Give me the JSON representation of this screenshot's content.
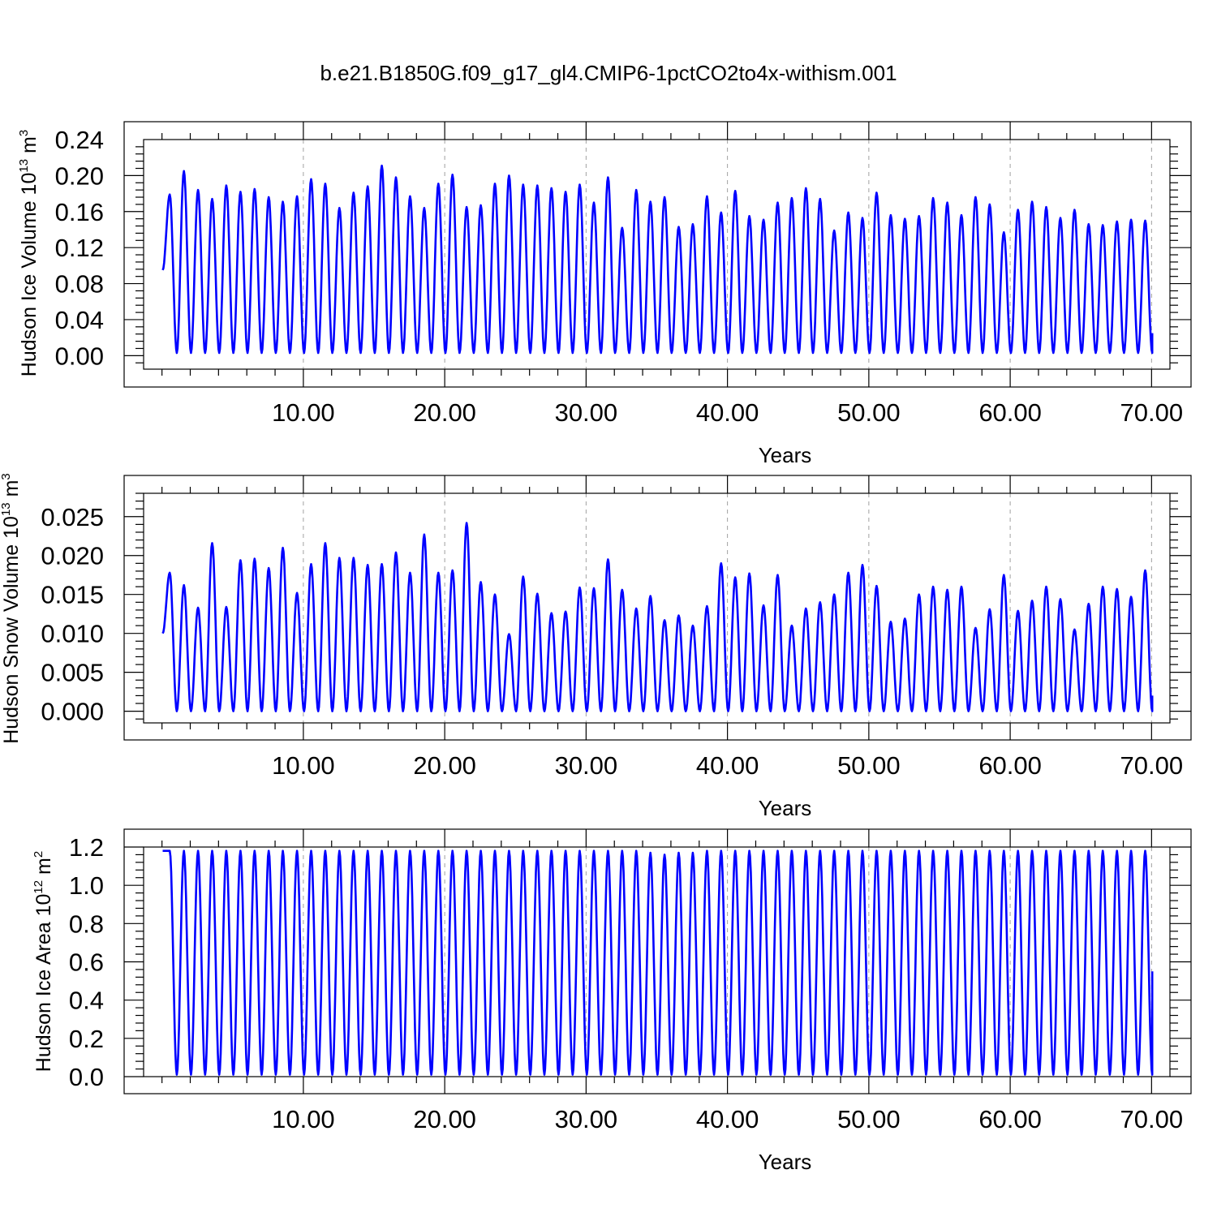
{
  "title": "b.e21.B1850G.f09_g17_gl4.CMIP6-1pctCO2to4x-withism.001",
  "line_color": "#0000ff",
  "grid_color": "#a0a0a0",
  "chart_data": [
    {
      "type": "line",
      "name": "ice_volume",
      "xlabel": "Years",
      "ylabel": {
        "main": "Hudson Ice Volume 10",
        "sup": "13",
        "unit": " m",
        "unit_sup": "3"
      },
      "xlim": [
        -1.3,
        71.3
      ],
      "ylim": [
        -0.015,
        0.24
      ],
      "xticks": [
        10,
        20,
        30,
        40,
        50,
        60,
        70
      ],
      "xtick_labels": [
        "10.00",
        "20.00",
        "30.00",
        "40.00",
        "50.00",
        "60.00",
        "70.00"
      ],
      "yticks": [
        0.0,
        0.04,
        0.08,
        0.12,
        0.16,
        0.2,
        0.24
      ],
      "ytick_labels": [
        "0.00",
        "0.04",
        "0.08",
        "0.12",
        "0.16",
        "0.20",
        "0.24"
      ],
      "grid": "vertical dashed at major x ticks",
      "start_value": 0.095,
      "end_value": 0.025,
      "trough": 0.003,
      "annual_max": [
        0.179,
        0.205,
        0.184,
        0.174,
        0.189,
        0.182,
        0.185,
        0.176,
        0.171,
        0.177,
        0.196,
        0.191,
        0.164,
        0.181,
        0.188,
        0.211,
        0.198,
        0.177,
        0.164,
        0.191,
        0.201,
        0.165,
        0.167,
        0.191,
        0.2,
        0.19,
        0.189,
        0.186,
        0.182,
        0.19,
        0.17,
        0.198,
        0.142,
        0.184,
        0.171,
        0.176,
        0.143,
        0.146,
        0.177,
        0.159,
        0.183,
        0.155,
        0.151,
        0.17,
        0.175,
        0.186,
        0.174,
        0.139,
        0.159,
        0.153,
        0.181,
        0.156,
        0.152,
        0.155,
        0.175,
        0.17,
        0.156,
        0.176,
        0.168,
        0.137,
        0.162,
        0.171,
        0.165,
        0.153,
        0.162,
        0.146,
        0.145,
        0.149,
        0.151,
        0.15
      ]
    },
    {
      "type": "line",
      "name": "snow_volume",
      "xlabel": "Years",
      "ylabel": {
        "main": "Hudson Snow Volume 10",
        "sup": "13",
        "unit": " m",
        "unit_sup": "3"
      },
      "xlim": [
        -1.3,
        71.3
      ],
      "ylim": [
        -0.0015,
        0.028
      ],
      "xticks": [
        10,
        20,
        30,
        40,
        50,
        60,
        70
      ],
      "xtick_labels": [
        "10.00",
        "20.00",
        "30.00",
        "40.00",
        "50.00",
        "60.00",
        "70.00"
      ],
      "yticks": [
        0.0,
        0.005,
        0.01,
        0.015,
        0.02,
        0.025
      ],
      "ytick_labels": [
        "0.000",
        "0.005",
        "0.010",
        "0.015",
        "0.020",
        "0.025"
      ],
      "grid": "vertical dashed at major x ticks",
      "start_value": 0.01,
      "end_value": 0.002,
      "trough": 0.0,
      "annual_max": [
        0.0178,
        0.0162,
        0.0133,
        0.0216,
        0.0134,
        0.0194,
        0.0196,
        0.0184,
        0.021,
        0.0152,
        0.0189,
        0.0216,
        0.0197,
        0.0197,
        0.0188,
        0.0189,
        0.0204,
        0.0178,
        0.0227,
        0.0178,
        0.0181,
        0.0242,
        0.0166,
        0.015,
        0.0099,
        0.0173,
        0.0151,
        0.0126,
        0.0128,
        0.0159,
        0.0158,
        0.0195,
        0.0156,
        0.0132,
        0.0148,
        0.0117,
        0.0123,
        0.011,
        0.0135,
        0.019,
        0.0172,
        0.0177,
        0.0136,
        0.0175,
        0.011,
        0.0132,
        0.014,
        0.015,
        0.0178,
        0.0188,
        0.0161,
        0.0115,
        0.0119,
        0.015,
        0.016,
        0.0156,
        0.016,
        0.0107,
        0.0131,
        0.0175,
        0.0129,
        0.0142,
        0.016,
        0.0144,
        0.0105,
        0.0138,
        0.016,
        0.0157,
        0.0147,
        0.0181
      ]
    },
    {
      "type": "line",
      "name": "ice_area",
      "xlabel": "Years",
      "ylabel": {
        "main": "Hudson Ice Area 10",
        "sup": "12",
        "unit": " m",
        "unit_sup": "2"
      },
      "xlim": [
        -1.3,
        71.3
      ],
      "ylim": [
        0.0,
        1.2
      ],
      "xticks": [
        10,
        20,
        30,
        40,
        50,
        60,
        70
      ],
      "xtick_labels": [
        "10.00",
        "20.00",
        "30.00",
        "40.00",
        "50.00",
        "60.00",
        "70.00"
      ],
      "yticks": [
        0.0,
        0.2,
        0.4,
        0.6,
        0.8,
        1.0,
        1.2
      ],
      "ytick_labels": [
        "0.0",
        "0.2",
        "0.4",
        "0.6",
        "0.8",
        "1.0",
        "1.2"
      ],
      "grid": "vertical dashed at major x ticks",
      "start_value": 1.18,
      "end_value": 0.55,
      "trough": 0.01,
      "annual_max": [
        1.18,
        1.18,
        1.18,
        1.18,
        1.18,
        1.18,
        1.18,
        1.18,
        1.18,
        1.18,
        1.18,
        1.18,
        1.18,
        1.18,
        1.18,
        1.18,
        1.18,
        1.18,
        1.18,
        1.18,
        1.18,
        1.18,
        1.18,
        1.18,
        1.18,
        1.18,
        1.18,
        1.18,
        1.18,
        1.18,
        1.18,
        1.18,
        1.18,
        1.18,
        1.17,
        1.16,
        1.17,
        1.17,
        1.18,
        1.18,
        1.18,
        1.18,
        1.18,
        1.18,
        1.18,
        1.18,
        1.18,
        1.18,
        1.18,
        1.18,
        1.18,
        1.18,
        1.18,
        1.18,
        1.18,
        1.18,
        1.18,
        1.18,
        1.18,
        1.18,
        1.18,
        1.18,
        1.18,
        1.18,
        1.18,
        1.18,
        1.18,
        1.18,
        1.18,
        1.18
      ]
    }
  ]
}
